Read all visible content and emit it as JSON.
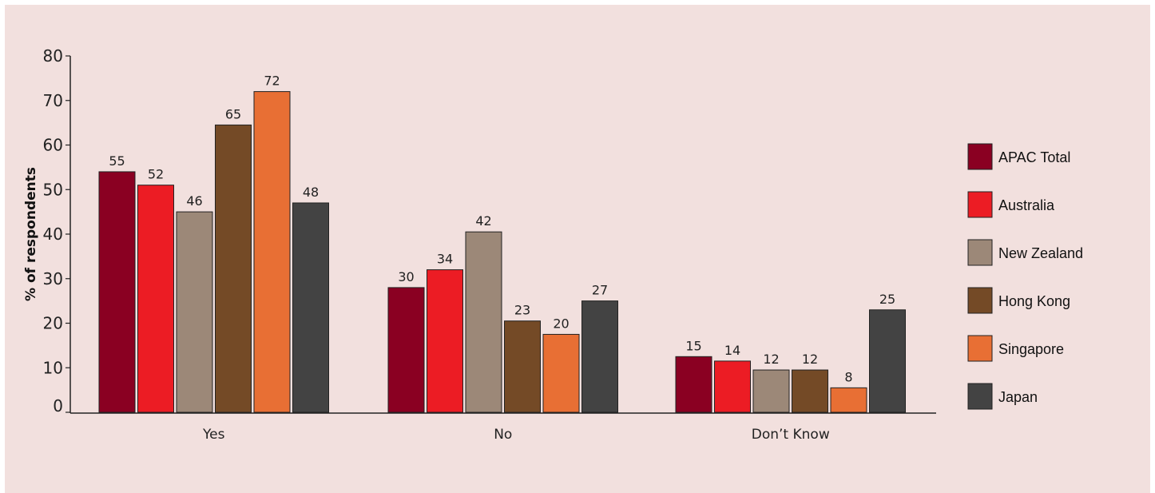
{
  "chart_data": {
    "type": "bar",
    "title": "",
    "xlabel": "",
    "ylabel": "% of respondents",
    "ylim": [
      0,
      80
    ],
    "yticks": [
      0,
      10,
      20,
      30,
      40,
      50,
      60,
      70,
      80
    ],
    "categories": [
      "Yes",
      "No",
      "Don’t Know"
    ],
    "legend_position": "right",
    "grid": false,
    "series": [
      {
        "name": "APAC Total",
        "color": "#8a0022",
        "values": [
          55,
          30,
          15
        ],
        "plotted": [
          54,
          28,
          12.5
        ]
      },
      {
        "name": "Australia",
        "color": "#ec1c24",
        "values": [
          52,
          34,
          14
        ],
        "plotted": [
          51,
          32,
          11.5
        ]
      },
      {
        "name": "New Zealand",
        "color": "#9c8878",
        "values": [
          46,
          42,
          12
        ],
        "plotted": [
          45,
          40.5,
          9.5
        ]
      },
      {
        "name": "Hong Kong",
        "color": "#744a26",
        "values": [
          65,
          23,
          12
        ],
        "plotted": [
          64.5,
          20.5,
          9.5
        ]
      },
      {
        "name": "Singapore",
        "color": "#e86f34",
        "values": [
          72,
          20,
          8
        ],
        "plotted": [
          72,
          17.5,
          5.5
        ]
      },
      {
        "name": "Japan",
        "color": "#434343",
        "values": [
          48,
          27,
          25
        ],
        "plotted": [
          47,
          25,
          23
        ]
      }
    ]
  }
}
